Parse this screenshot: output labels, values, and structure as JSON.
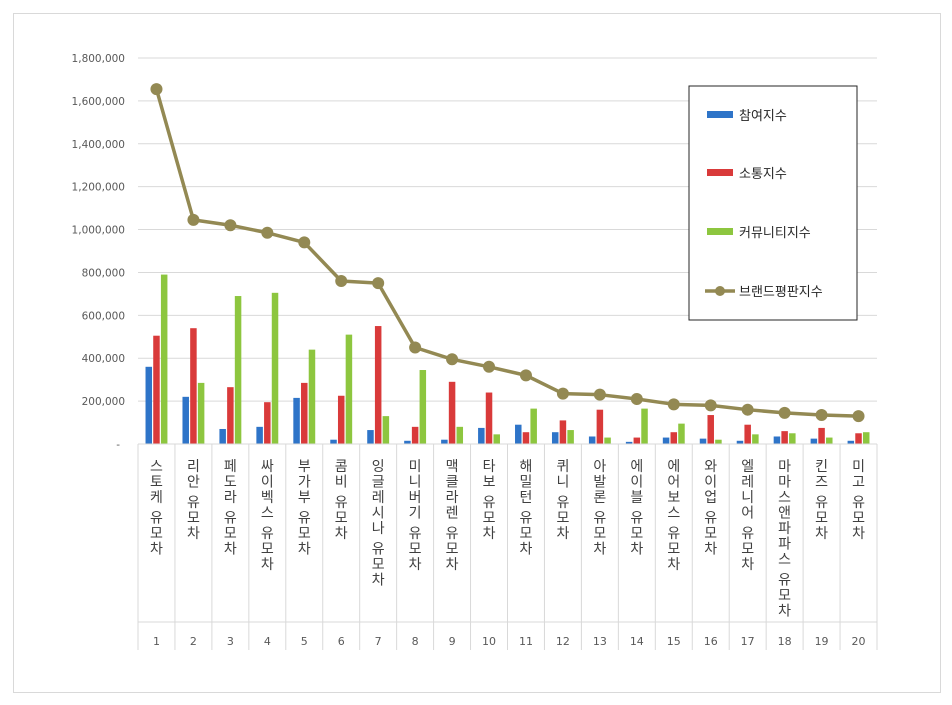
{
  "chart_data": {
    "type": "bar",
    "categories": [
      "스토케 유모차",
      "리안 유모차",
      "페도라 유모차",
      "싸이벡스 유모차",
      "부가부 유모차",
      "콤비 유모차",
      "잉글레시나 유모차",
      "미니버기 유모차",
      "맥클라렌 유모차",
      "타보 유모차",
      "해밀턴 유모차",
      "퀴니 유모차",
      "아발론 유모차",
      "에이블 유모차",
      "에어보스 유모차",
      "와이업 유모차",
      "엘레니어 유모차",
      "마마스앤파파스 유모차",
      "킨즈 유모차",
      "미고 유모차"
    ],
    "ranks": [
      "1",
      "2",
      "3",
      "4",
      "5",
      "6",
      "7",
      "8",
      "9",
      "10",
      "11",
      "12",
      "13",
      "14",
      "15",
      "16",
      "17",
      "18",
      "19",
      "20"
    ],
    "series": [
      {
        "name": "참여지수",
        "type": "bar",
        "color": "#2e74c8",
        "values": [
          360000,
          220000,
          70000,
          80000,
          215000,
          20000,
          65000,
          15000,
          20000,
          75000,
          90000,
          55000,
          35000,
          10000,
          30000,
          25000,
          15000,
          35000,
          25000,
          15000
        ]
      },
      {
        "name": "소통지수",
        "type": "bar",
        "color": "#d93a3a",
        "values": [
          505000,
          540000,
          265000,
          195000,
          285000,
          225000,
          550000,
          80000,
          290000,
          240000,
          55000,
          110000,
          160000,
          30000,
          55000,
          135000,
          90000,
          60000,
          75000,
          50000
        ]
      },
      {
        "name": "커뮤니티지수",
        "type": "bar",
        "color": "#8dc63f",
        "values": [
          790000,
          285000,
          690000,
          705000,
          440000,
          510000,
          130000,
          345000,
          80000,
          45000,
          165000,
          65000,
          30000,
          165000,
          95000,
          20000,
          45000,
          50000,
          30000,
          55000
        ]
      },
      {
        "name": "브랜드평판지수",
        "type": "line",
        "color": "#938953",
        "values": [
          1655000,
          1045000,
          1020000,
          985000,
          940000,
          760000,
          750000,
          450000,
          395000,
          360000,
          320000,
          235000,
          230000,
          210000,
          185000,
          180000,
          160000,
          145000,
          135000,
          130000
        ]
      }
    ],
    "yticks": [
      "-",
      "200,000",
      "400,000",
      "600,000",
      "800,000",
      "1,000,000",
      "1,200,000",
      "1,400,000",
      "1,600,000",
      "1,800,000"
    ],
    "ylim": [
      0,
      1800000
    ],
    "grid": true,
    "legend_position": "top-right"
  }
}
